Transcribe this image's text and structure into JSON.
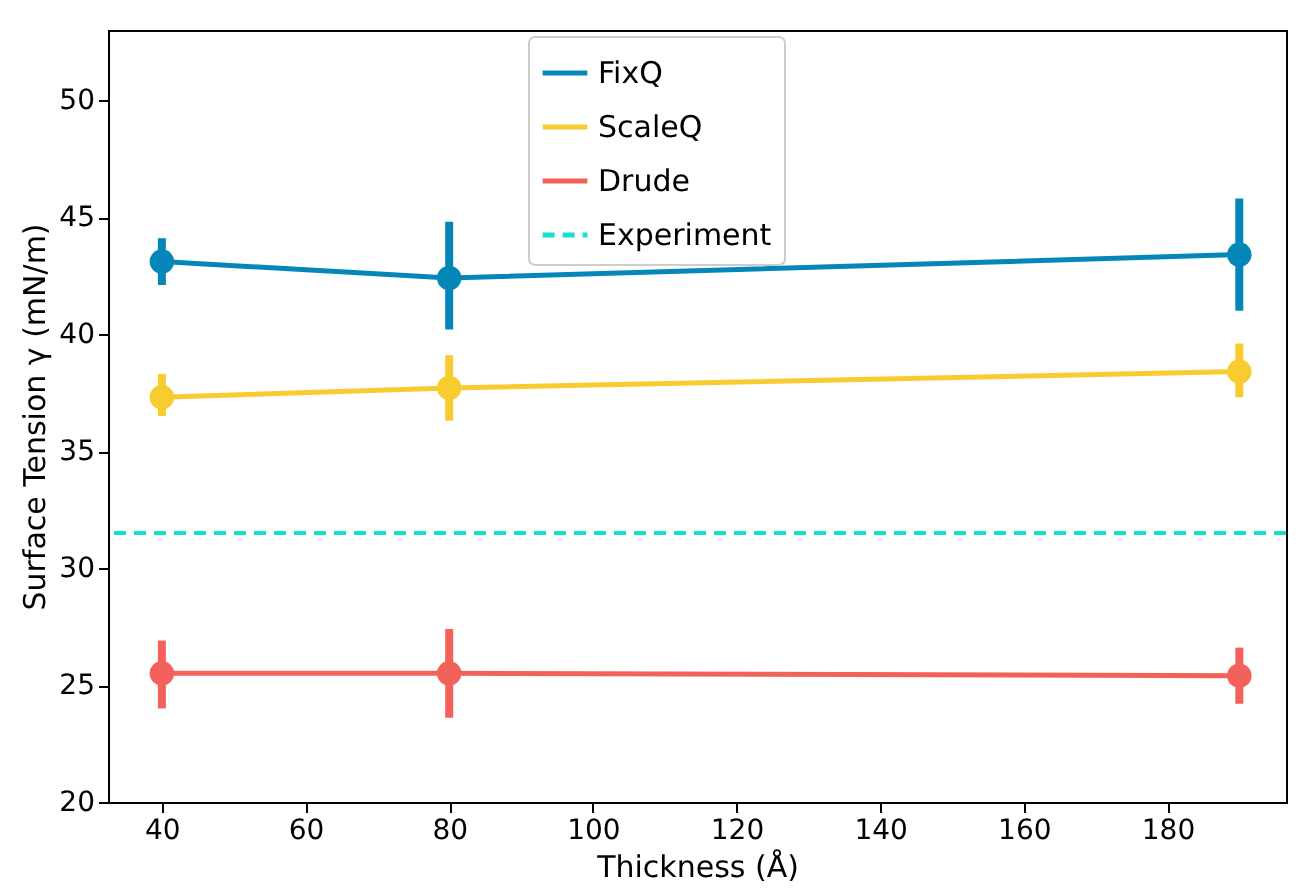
{
  "chart_data": {
    "type": "line",
    "xlabel": "Thickness (Å)",
    "ylabel": "Surface Tension γ (mN/m)",
    "x": [
      40,
      80,
      190
    ],
    "series": [
      {
        "name": "FixQ",
        "color": "#0487b8",
        "values": [
          43.1,
          42.4,
          43.4
        ],
        "errors": [
          [
            42.1,
            44.1
          ],
          [
            40.2,
            44.8
          ],
          [
            41.0,
            45.8
          ]
        ]
      },
      {
        "name": "ScaleQ",
        "color": "#f8cb2e",
        "values": [
          37.3,
          37.7,
          38.4
        ],
        "errors": [
          [
            36.5,
            38.3
          ],
          [
            36.3,
            39.1
          ],
          [
            37.3,
            39.6
          ]
        ]
      },
      {
        "name": "Drude",
        "color": "#f2625a",
        "values": [
          25.5,
          25.5,
          25.4
        ],
        "errors": [
          [
            24.0,
            26.9
          ],
          [
            23.6,
            27.4
          ],
          [
            24.2,
            26.6
          ]
        ]
      }
    ],
    "ref_lines": [
      {
        "axis": "y",
        "value": 31.5,
        "label": "Experiment",
        "color": "#14e0d0",
        "line_style": "dashed"
      }
    ],
    "xlim": [
      32.5,
      196.5
    ],
    "ylim": [
      20,
      53
    ],
    "xticks": [
      40,
      60,
      80,
      100,
      120,
      140,
      160,
      180
    ],
    "yticks": [
      20,
      25,
      30,
      35,
      40,
      45,
      50
    ],
    "marker": "circle",
    "legend": "top",
    "grid": false
  }
}
